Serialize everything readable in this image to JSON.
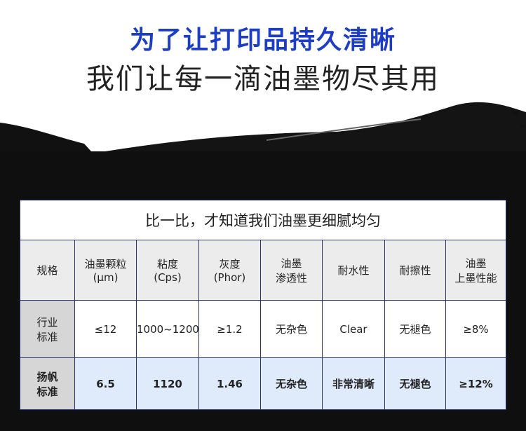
{
  "headline": {
    "line1": "为了让打印品持久清晰",
    "line2": "我们让每一滴油墨物尽其用"
  },
  "colors": {
    "headline_blue": "#1d3ec4",
    "background": "#0f0f0f",
    "highlight_row": "#dfeafa"
  },
  "table": {
    "title": "比一比，才知道我们油墨更细腻均匀",
    "headers": [
      "规格",
      "油墨颗粒\n(μm)",
      "粘度\n(Cps)",
      "灰度\n(Phor)",
      "油墨\n渗透性",
      "耐水性",
      "耐擦性",
      "油墨\n上墨性能"
    ],
    "rows": [
      [
        "行业\n标准",
        "≤12",
        "1000~1200",
        "≥1.2",
        "无杂色",
        "Clear",
        "无褪色",
        "≥8%"
      ],
      [
        "扬帆\n标准",
        "6.5",
        "1120",
        "1.46",
        "无杂色",
        "非常清晰",
        "无褪色",
        "≥12%"
      ]
    ]
  }
}
